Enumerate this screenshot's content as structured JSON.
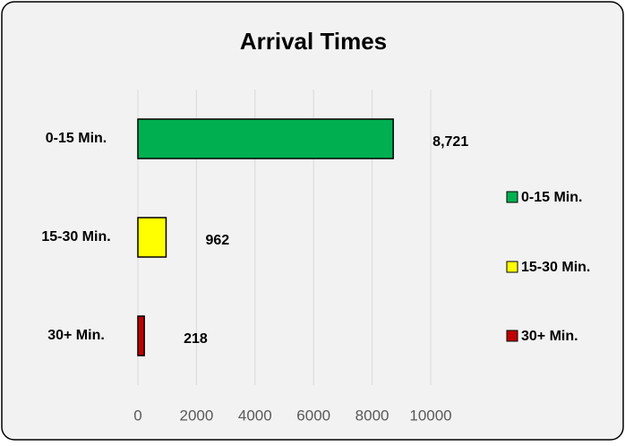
{
  "chart_data": {
    "type": "hbar",
    "title": "Arrival Times",
    "categories": [
      "0-15 Min.",
      "15-30 Min.",
      "30+ Min."
    ],
    "values": [
      8721,
      962,
      218
    ],
    "value_labels": [
      "8,721",
      "962",
      "218"
    ],
    "colors": [
      "#00b050",
      "#ffff00",
      "#c00000"
    ],
    "xlim": [
      0,
      10000
    ],
    "xticks": [
      0,
      2000,
      4000,
      6000,
      8000,
      10000
    ],
    "grid": true,
    "legend": "right"
  }
}
